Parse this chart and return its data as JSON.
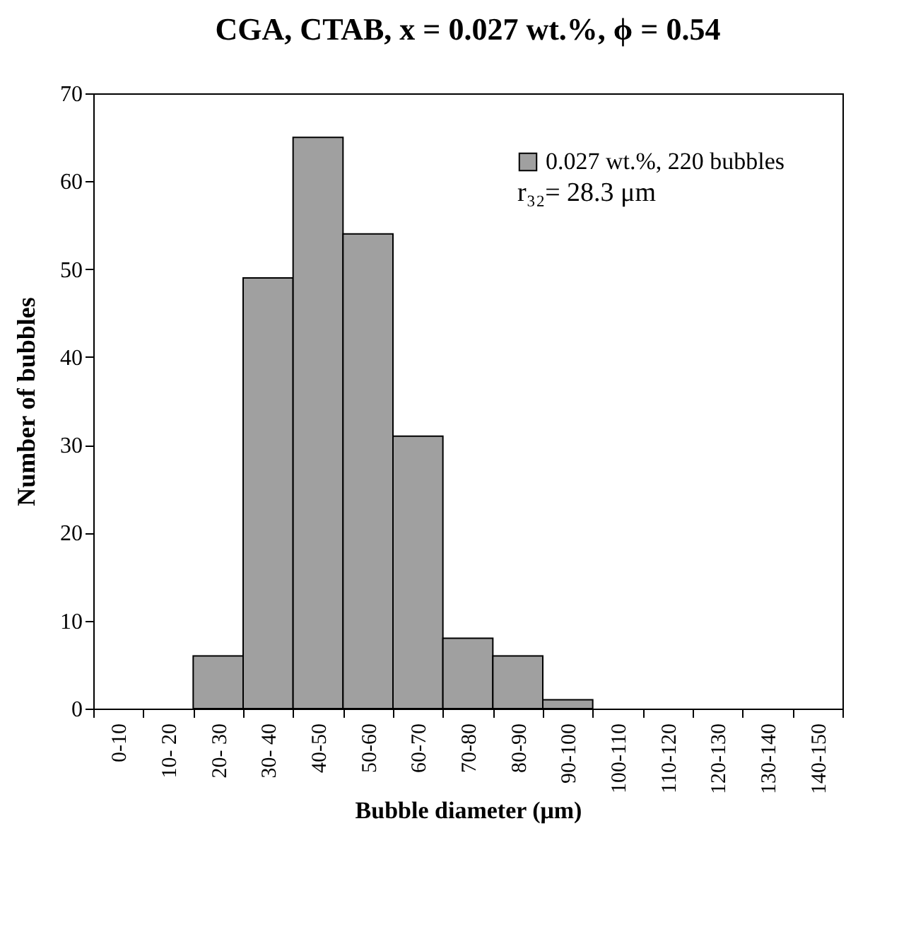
{
  "chart_data": {
    "type": "bar",
    "title": "CGA, CTAB, x = 0.027 wt.%, ϕ = 0.54",
    "xlabel": "Bubble diameter (μm)",
    "ylabel": "Number of bubbles",
    "categories": [
      "0-10",
      "10- 20",
      "20- 30",
      "30- 40",
      "40-50",
      "50-60",
      "60-70",
      "70-80",
      "80-90",
      "90-100",
      "100-110",
      "110-120",
      "120-130",
      "130-140",
      "140-150"
    ],
    "series": [
      {
        "name": "0.027 wt.%, 220 bubbles",
        "color": "#a0a0a0",
        "values": [
          0,
          0,
          6,
          49,
          65,
          54,
          31,
          8,
          6,
          1,
          0,
          0,
          0,
          0,
          0
        ]
      }
    ],
    "ylim": [
      0,
      70
    ],
    "yticks": [
      0,
      10,
      20,
      30,
      40,
      50,
      60,
      70
    ],
    "grid": false,
    "legend": "top right",
    "annotations": [
      "r₃₂= 28.3 μm"
    ]
  }
}
